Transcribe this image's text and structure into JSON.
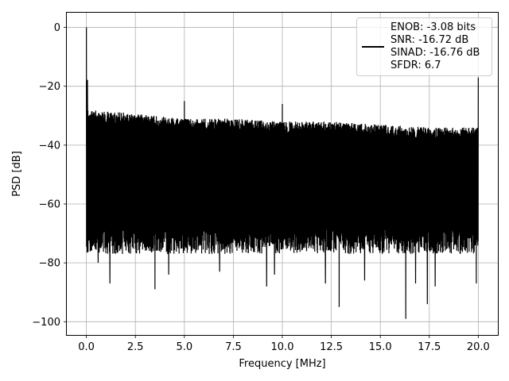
{
  "chart_data": {
    "type": "line",
    "title": "",
    "xlabel": "Frequency [MHz]",
    "ylabel": "PSD [dB]",
    "xlim": [
      -1.0,
      21.0
    ],
    "ylim": [
      -104.5,
      5.0
    ],
    "xticks": [
      0.0,
      2.5,
      5.0,
      7.5,
      10.0,
      12.5,
      15.0,
      17.5,
      20.0
    ],
    "xtick_labels": [
      "0.0",
      "2.5",
      "5.0",
      "7.5",
      "10.0",
      "12.5",
      "15.0",
      "17.5",
      "20.0"
    ],
    "yticks": [
      0,
      -20,
      -40,
      -60,
      -80,
      -100
    ],
    "ytick_labels": [
      "0",
      "−20",
      "−40",
      "−60",
      "−80",
      "−100"
    ],
    "grid": true,
    "legend_position": "top-right",
    "series": [
      {
        "name": "ENOB: -3.08 bits\nSNR: -16.72 dB\nSINAD: -16.76 dB\nSFDR: 6.7",
        "color": "#000000",
        "x_range": [
          0.0,
          20.0
        ],
        "noise_top_db": [
          [
            0.0,
            -28
          ],
          [
            2.0,
            -29
          ],
          [
            5.0,
            -31
          ],
          [
            7.5,
            -31
          ],
          [
            10.0,
            -32
          ],
          [
            12.5,
            -32
          ],
          [
            15.0,
            -33
          ],
          [
            17.5,
            -34
          ],
          [
            20.0,
            -34
          ]
        ],
        "noise_floor_db": -72,
        "spikes": [
          [
            0.0,
            0.0
          ],
          [
            0.05,
            -18.0
          ],
          [
            5.0,
            -25.0
          ],
          [
            10.0,
            -26.0
          ],
          [
            20.0,
            -17.0
          ]
        ],
        "dips": [
          [
            0.6,
            -80
          ],
          [
            1.2,
            -87
          ],
          [
            3.5,
            -89
          ],
          [
            4.2,
            -84
          ],
          [
            6.8,
            -83
          ],
          [
            9.2,
            -88
          ],
          [
            9.6,
            -84
          ],
          [
            12.2,
            -87
          ],
          [
            12.9,
            -95
          ],
          [
            14.2,
            -86
          ],
          [
            16.3,
            -99
          ],
          [
            16.8,
            -87
          ],
          [
            17.4,
            -94
          ],
          [
            17.8,
            -88
          ],
          [
            19.9,
            -87
          ]
        ]
      }
    ]
  }
}
